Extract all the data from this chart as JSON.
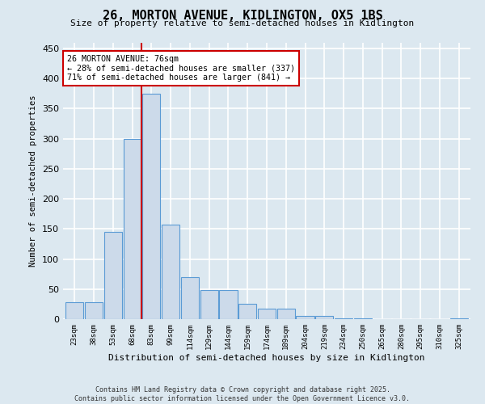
{
  "title1": "26, MORTON AVENUE, KIDLINGTON, OX5 1BS",
  "title2": "Size of property relative to semi-detached houses in Kidlington",
  "xlabel": "Distribution of semi-detached houses by size in Kidlington",
  "ylabel": "Number of semi-detached properties",
  "bins": [
    "23sqm",
    "38sqm",
    "53sqm",
    "68sqm",
    "83sqm",
    "99sqm",
    "114sqm",
    "129sqm",
    "144sqm",
    "159sqm",
    "174sqm",
    "189sqm",
    "204sqm",
    "219sqm",
    "234sqm",
    "250sqm",
    "265sqm",
    "280sqm",
    "295sqm",
    "310sqm",
    "325sqm"
  ],
  "values": [
    28,
    28,
    145,
    300,
    375,
    157,
    70,
    48,
    48,
    25,
    17,
    17,
    5,
    5,
    2,
    2,
    0,
    0,
    0,
    0,
    2
  ],
  "bar_color": "#ccdaea",
  "bar_edge_color": "#5b9bd5",
  "annotation_text": "26 MORTON AVENUE: 76sqm\n← 28% of semi-detached houses are smaller (337)\n71% of semi-detached houses are larger (841) →",
  "red_line_color": "#cc0000",
  "annotation_box_color": "#ffffff",
  "annotation_box_edge": "#cc0000",
  "footer1": "Contains HM Land Registry data © Crown copyright and database right 2025.",
  "footer2": "Contains public sector information licensed under the Open Government Licence v3.0.",
  "ylim": [
    0,
    460
  ],
  "background_color": "#dce8f0",
  "grid_color": "#ffffff",
  "property_line_x": 3.47
}
